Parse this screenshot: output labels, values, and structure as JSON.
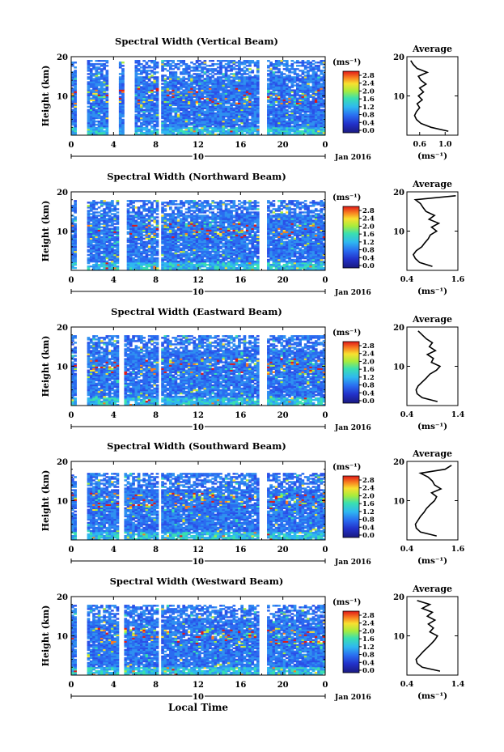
{
  "chart_data": [
    {
      "type": "heatmap",
      "title": "Spectral Width (Vertical Beam)",
      "ylabel": "Height (km)",
      "y_ticks": [
        "20",
        "10"
      ],
      "ylim": [
        0,
        20
      ],
      "xlim": [
        0,
        24
      ],
      "x_ticks": [
        "0",
        "4",
        "8",
        "12",
        "16",
        "20",
        "0"
      ],
      "day_label": "10",
      "date_label": "Jan 2016",
      "colorbar": {
        "unit": "(ms⁻¹)",
        "ticks": [
          "2.8",
          "2.4",
          "2.0",
          "1.6",
          "1.2",
          "0.8",
          "0.4",
          "0.0"
        ]
      },
      "data_gaps_hours": [
        [
          0.5,
          1.6
        ],
        [
          3.6,
          4.6
        ],
        [
          5.1,
          6.0
        ],
        [
          8.2,
          8.6
        ],
        [
          17.8,
          18.5
        ]
      ],
      "top_km": 19
    },
    {
      "type": "heatmap",
      "title": "Spectral Width (Northward Beam)",
      "ylabel": "Height (km)",
      "y_ticks": [
        "20",
        "10"
      ],
      "ylim": [
        0,
        20
      ],
      "xlim": [
        0,
        24
      ],
      "x_ticks": [
        "0",
        "4",
        "8",
        "12",
        "16",
        "20",
        "0"
      ],
      "day_label": "10",
      "date_label": "Jan 2016",
      "colorbar": {
        "unit": "(ms⁻¹)",
        "ticks": [
          "2.8",
          "2.4",
          "2.0",
          "1.6",
          "1.2",
          "0.8",
          "0.4",
          "0.0"
        ]
      },
      "data_gaps_hours": [
        [
          0.5,
          1.6
        ],
        [
          4.5,
          5.0
        ],
        [
          5.1,
          5.3
        ],
        [
          8.2,
          8.6
        ],
        [
          17.8,
          18.5
        ]
      ],
      "top_km": 18
    },
    {
      "type": "heatmap",
      "title": "Spectral Width (Eastward Beam)",
      "ylabel": "Height (km)",
      "y_ticks": [
        "20",
        "10"
      ],
      "ylim": [
        0,
        20
      ],
      "xlim": [
        0,
        24
      ],
      "x_ticks": [
        "0",
        "4",
        "8",
        "12",
        "16",
        "20",
        "0"
      ],
      "day_label": "10",
      "date_label": "Jan 2016",
      "colorbar": {
        "unit": "(ms⁻¹)",
        "ticks": [
          "2.8",
          "2.4",
          "2.0",
          "1.6",
          "1.2",
          "0.8",
          "0.4",
          "0.0"
        ]
      },
      "data_gaps_hours": [
        [
          0.5,
          1.6
        ],
        [
          4.6,
          5.0
        ],
        [
          8.2,
          8.6
        ],
        [
          17.8,
          18.5
        ]
      ],
      "top_km": 18
    },
    {
      "type": "heatmap",
      "title": "Spectral Width (Southward Beam)",
      "ylabel": "Height (km)",
      "y_ticks": [
        "20",
        "10"
      ],
      "ylim": [
        0,
        20
      ],
      "xlim": [
        0,
        24
      ],
      "x_ticks": [
        "0",
        "4",
        "8",
        "12",
        "16",
        "20",
        "0"
      ],
      "day_label": "10",
      "date_label": "Jan 2016",
      "colorbar": {
        "unit": "(ms⁻¹)",
        "ticks": [
          "2.8",
          "2.4",
          "2.0",
          "1.6",
          "1.2",
          "0.8",
          "0.4",
          "0.0"
        ]
      },
      "data_gaps_hours": [
        [
          0.5,
          1.6
        ],
        [
          4.6,
          5.0
        ],
        [
          8.2,
          8.6
        ],
        [
          17.8,
          18.5
        ]
      ],
      "top_km": 17
    },
    {
      "type": "heatmap",
      "title": "Spectral Width (Westward Beam)",
      "ylabel": "Height (km)",
      "y_ticks": [
        "20",
        "10"
      ],
      "ylim": [
        0,
        20
      ],
      "xlim": [
        0,
        24
      ],
      "x_ticks": [
        "0",
        "4",
        "8",
        "12",
        "16",
        "20",
        "0"
      ],
      "day_label": "10",
      "date_label": "Jan 2016",
      "xlabel": "Local Time",
      "colorbar": {
        "unit": "(ms⁻¹)",
        "ticks": [
          "2.8",
          "2.4",
          "2.0",
          "1.6",
          "1.2",
          "0.8",
          "0.4",
          "0.0"
        ]
      },
      "data_gaps_hours": [
        [
          0.5,
          1.6
        ],
        [
          4.6,
          5.0
        ],
        [
          8.2,
          8.6
        ],
        [
          17.8,
          18.5
        ]
      ],
      "top_km": 18
    },
    {
      "type": "line",
      "title": "Average",
      "xlabel": "(ms⁻¹)",
      "y_ticks": [
        "20",
        "10"
      ],
      "ylim": [
        0,
        20
      ],
      "x_ticks": [
        "0.6",
        "1.0"
      ],
      "xlim": [
        0.4,
        1.2
      ],
      "profile": {
        "y": [
          1,
          2,
          3,
          4,
          5,
          6,
          7,
          8,
          9,
          10,
          11,
          12,
          13,
          14,
          15,
          16,
          17,
          18,
          19
        ],
        "x": [
          1.05,
          0.78,
          0.62,
          0.55,
          0.52,
          0.55,
          0.6,
          0.56,
          0.64,
          0.58,
          0.66,
          0.6,
          0.7,
          0.62,
          0.58,
          0.72,
          0.56,
          0.5,
          0.46
        ]
      }
    },
    {
      "type": "line",
      "title": "Average",
      "xlabel": "(ms⁻¹)",
      "y_ticks": [
        "20",
        "10"
      ],
      "ylim": [
        0,
        20
      ],
      "x_ticks": [
        "0.4",
        "1.6"
      ],
      "xlim": [
        0.4,
        1.6
      ],
      "profile": {
        "y": [
          1,
          2,
          3,
          4,
          5,
          6,
          7,
          8,
          9,
          10,
          11,
          12,
          13,
          14,
          15,
          16,
          17,
          18,
          19
        ],
        "x": [
          1.0,
          0.7,
          0.6,
          0.55,
          0.62,
          0.75,
          0.82,
          0.9,
          0.95,
          1.1,
          0.98,
          1.15,
          0.92,
          1.05,
          0.85,
          0.78,
          0.72,
          0.6,
          1.55
        ]
      }
    },
    {
      "type": "line",
      "title": "Average",
      "xlabel": "(ms⁻¹)",
      "y_ticks": [
        "20",
        "10"
      ],
      "ylim": [
        0,
        20
      ],
      "x_ticks": [
        "0.4",
        "1.4"
      ],
      "xlim": [
        0.4,
        1.4
      ],
      "profile": {
        "y": [
          1,
          2,
          3,
          4,
          5,
          6,
          7,
          8,
          9,
          10,
          11,
          12,
          13,
          14,
          15,
          16,
          17,
          18,
          19
        ],
        "x": [
          1.0,
          0.7,
          0.6,
          0.58,
          0.62,
          0.7,
          0.78,
          0.85,
          0.98,
          1.05,
          0.88,
          0.92,
          0.8,
          0.96,
          0.84,
          0.9,
          0.78,
          0.7,
          0.62
        ]
      }
    },
    {
      "type": "line",
      "title": "Average",
      "xlabel": "(ms⁻¹)",
      "y_ticks": [
        "20",
        "10"
      ],
      "ylim": [
        0,
        20
      ],
      "x_ticks": [
        "0.4",
        "1.6"
      ],
      "xlim": [
        0.4,
        1.6
      ],
      "profile": {
        "y": [
          1,
          2,
          3,
          4,
          5,
          6,
          7,
          8,
          9,
          10,
          11,
          12,
          13,
          14,
          15,
          16,
          17,
          18,
          19
        ],
        "x": [
          1.1,
          0.72,
          0.62,
          0.6,
          0.66,
          0.72,
          0.8,
          0.86,
          0.95,
          1.05,
          1.1,
          0.98,
          1.2,
          1.05,
          1.0,
          0.9,
          0.72,
          1.3,
          1.45
        ]
      }
    },
    {
      "type": "line",
      "title": "Average",
      "xlabel": "(ms⁻¹)",
      "y_ticks": [
        "20",
        "10"
      ],
      "ylim": [
        0,
        20
      ],
      "x_ticks": [
        "0.4",
        "1.4"
      ],
      "xlim": [
        0.4,
        1.4
      ],
      "profile": {
        "y": [
          1,
          2,
          3,
          4,
          5,
          6,
          7,
          8,
          9,
          10,
          11,
          12,
          13,
          14,
          15,
          16,
          17,
          18,
          19
        ],
        "x": [
          1.05,
          0.7,
          0.6,
          0.58,
          0.65,
          0.72,
          0.8,
          0.88,
          0.95,
          1.0,
          0.85,
          0.92,
          0.82,
          0.95,
          0.8,
          0.9,
          0.7,
          0.85,
          0.6
        ]
      }
    }
  ]
}
